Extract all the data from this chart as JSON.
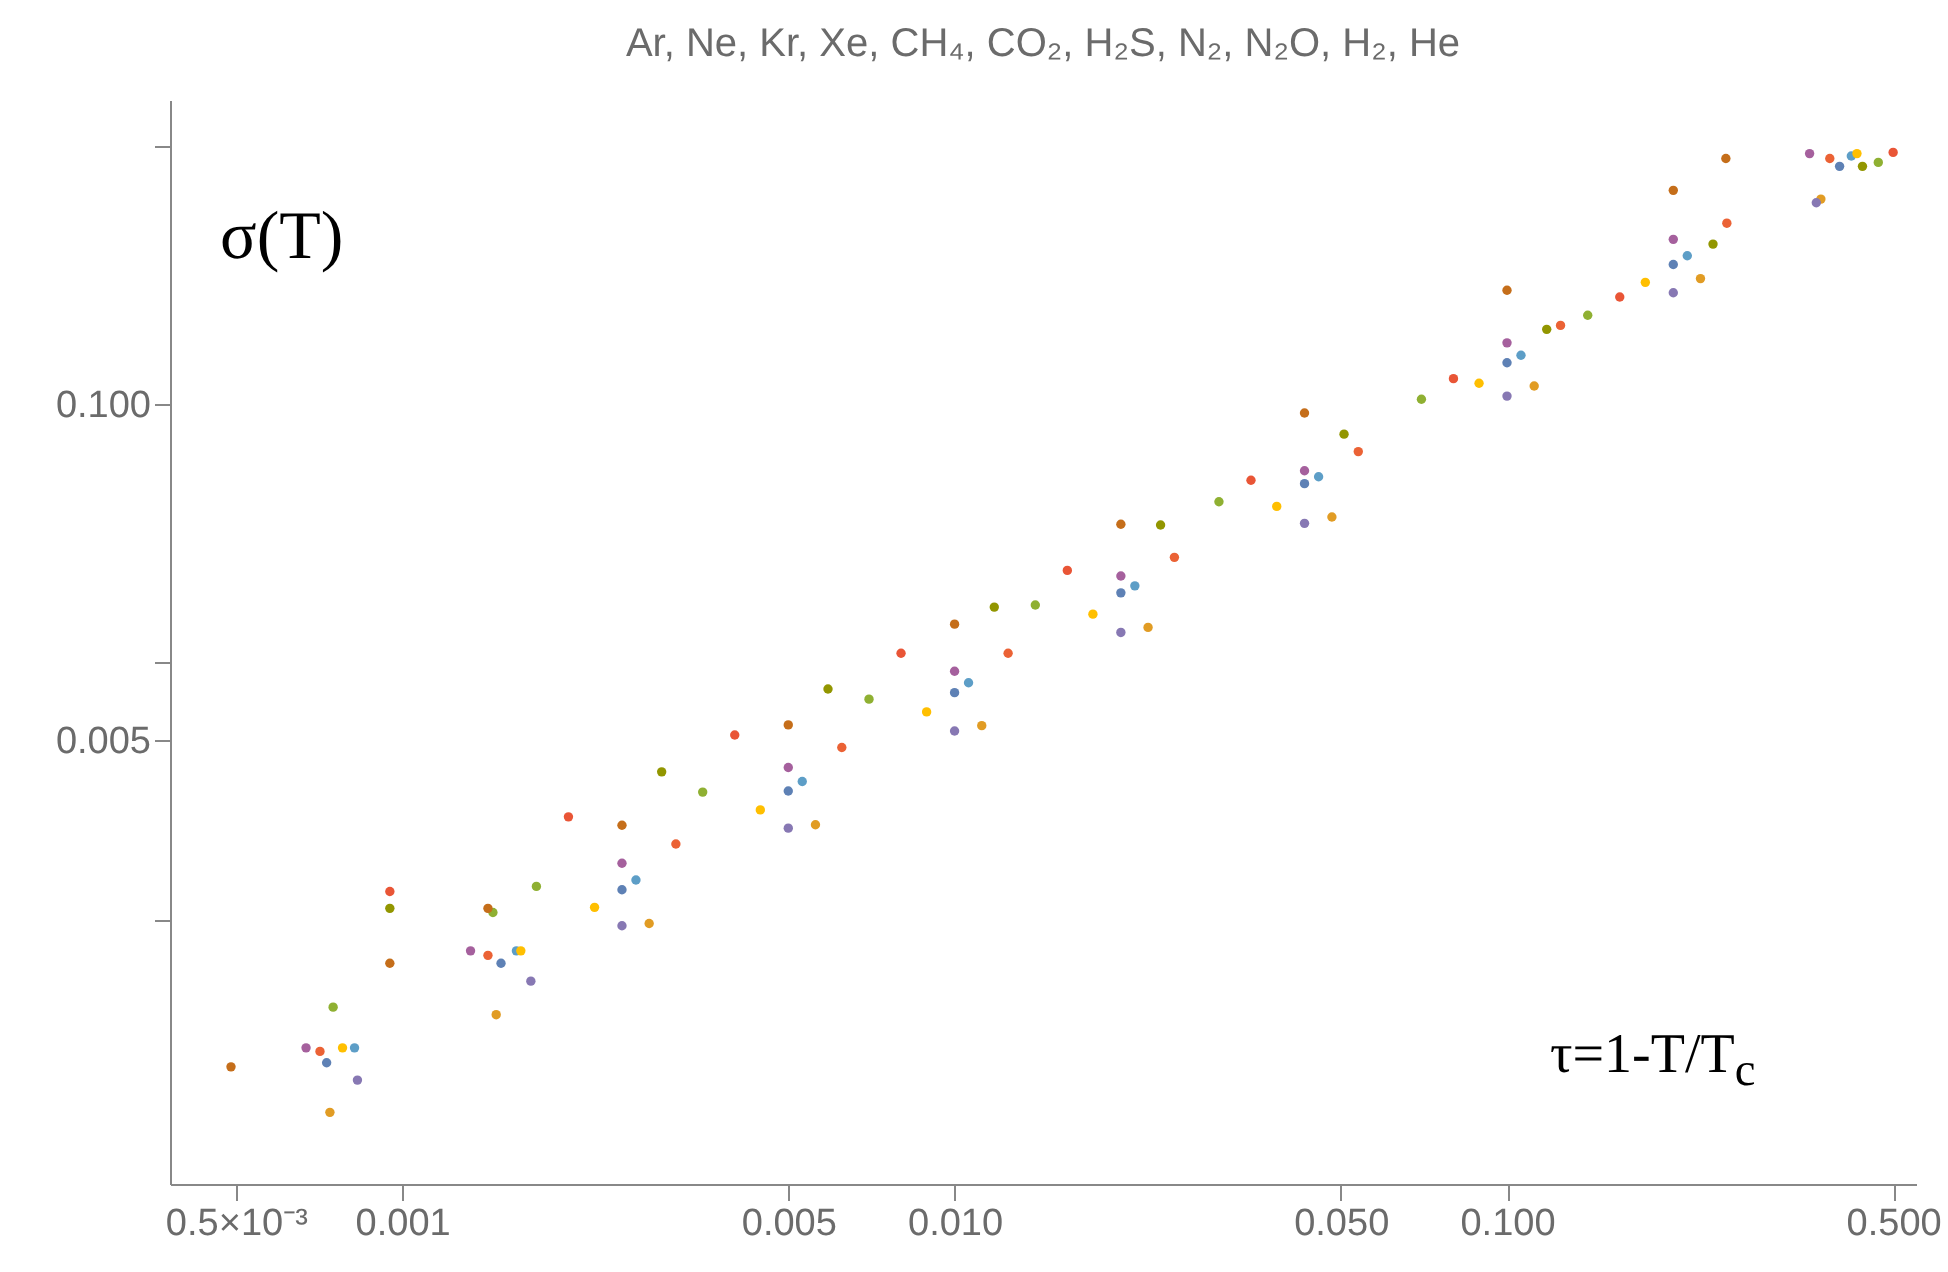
{
  "chart_data": {
    "type": "scatter",
    "title": "Ar, Ne, Kr, Xe, CH₄, CO₂, H₂S, N₂, N₂O, H₂, He",
    "xlabel": "τ=1-T/T$_{c}$",
    "ylabel": "σ(T)",
    "log": "xy",
    "marker": "circle",
    "xlim": [
      0.00038,
      0.55
    ],
    "ylim": [
      9.5e-05,
      1.5
    ],
    "xticks": [
      {
        "value": 0.0005,
        "label": "0.5×10⁻³"
      },
      {
        "value": 0.001,
        "label": "0.001"
      },
      {
        "value": 0.005,
        "label": "0.005"
      },
      {
        "value": 0.01,
        "label": "0.010"
      },
      {
        "value": 0.05,
        "label": "0.050"
      },
      {
        "value": 0.1,
        "label": "0.100"
      },
      {
        "value": 0.5,
        "label": "0.500"
      }
    ],
    "yticks": [
      {
        "value": 1,
        "label": null
      },
      {
        "value": 0.1,
        "label": "0.100"
      },
      {
        "value": 0.01,
        "label": null
      },
      {
        "value": 0.005,
        "label": "0.005"
      },
      {
        "value": 0.001,
        "label": null
      }
    ],
    "series": [
      {
        "color": "#5e81b5",
        "x": [
          0.00073,
          0.00151,
          0.0025,
          0.005,
          0.01,
          0.02,
          0.043,
          0.1,
          0.2,
          0.4
        ],
        "values": [
          0.00028,
          0.00068,
          0.00131,
          0.00316,
          0.0076,
          0.0185,
          0.049,
          0.144,
          0.346,
          0.83
        ]
      },
      {
        "color": "#e19c24",
        "x": [
          0.00074,
          0.00148,
          0.0028,
          0.0056,
          0.0112,
          0.0224,
          0.0482,
          0.112,
          0.224,
          0.37
        ],
        "values": [
          0.00018,
          0.00043,
          0.00097,
          0.00234,
          0.00566,
          0.0136,
          0.0364,
          0.117,
          0.305,
          0.62
        ]
      },
      {
        "color": "#8fb032",
        "x": [
          0.00075,
          0.00146,
          0.00175,
          0.0035,
          0.007,
          0.014,
          0.0301,
          0.07,
          0.14,
          0.47
        ],
        "values": [
          0.00046,
          0.00107,
          0.00135,
          0.00313,
          0.00717,
          0.0166,
          0.0417,
          0.104,
          0.22,
          0.86
        ]
      },
      {
        "color": "#eb6235",
        "x": [
          0.00071,
          0.00143,
          0.00313,
          0.00625,
          0.0125,
          0.025,
          0.0538,
          0.125,
          0.25,
          0.384
        ],
        "values": [
          0.00031,
          0.00073,
          0.00197,
          0.00466,
          0.0108,
          0.0254,
          0.0652,
          0.201,
          0.5,
          0.89
        ]
      },
      {
        "color": "#8778b3",
        "x": [
          0.00083,
          0.00171,
          0.0025,
          0.005,
          0.01,
          0.02,
          0.043,
          0.1,
          0.2,
          0.363
        ],
        "values": [
          0.00024,
          0.00058,
          0.00095,
          0.00227,
          0.0054,
          0.013,
          0.0344,
          0.107,
          0.269,
          0.6
        ]
      },
      {
        "color": "#c56e1a",
        "x": [
          0.00049,
          0.00095,
          0.00143,
          0.0025,
          0.005,
          0.01,
          0.02,
          0.043,
          0.1,
          0.2,
          0.249
        ],
        "values": [
          0.00027,
          0.00068,
          0.00111,
          0.00233,
          0.0057,
          0.014,
          0.0341,
          0.092,
          0.275,
          0.67,
          0.89
        ]
      },
      {
        "color": "#5d9ec7",
        "x": [
          0.00082,
          0.00161,
          0.00265,
          0.0053,
          0.0106,
          0.0212,
          0.0456,
          0.106,
          0.212,
          0.42
        ],
        "values": [
          0.00032,
          0.00076,
          0.00143,
          0.00344,
          0.0083,
          0.0197,
          0.0521,
          0.154,
          0.374,
          0.91
        ]
      },
      {
        "color": "#ffbf00",
        "x": [
          0.00078,
          0.00164,
          0.00223,
          0.00445,
          0.0089,
          0.0178,
          0.0383,
          0.089,
          0.178,
          0.43
        ],
        "values": [
          0.00032,
          0.00076,
          0.00112,
          0.00267,
          0.0064,
          0.0153,
          0.04,
          0.12,
          0.295,
          0.93
        ]
      },
      {
        "color": "#a5609d",
        "x": [
          0.00067,
          0.00133,
          0.0025,
          0.005,
          0.01,
          0.02,
          0.043,
          0.1,
          0.2,
          0.353
        ],
        "values": [
          0.00032,
          0.00076,
          0.00166,
          0.0039,
          0.0092,
          0.0215,
          0.055,
          0.172,
          0.433,
          0.93
        ]
      },
      {
        "color": "#929600",
        "x": [
          0.00095,
          0.00295,
          0.0059,
          0.0118,
          0.0236,
          0.0507,
          0.118,
          0.236,
          0.44
        ],
        "values": [
          0.00111,
          0.00375,
          0.00785,
          0.0163,
          0.0339,
          0.0762,
          0.194,
          0.415,
          0.83
        ]
      },
      {
        "color": "#e95536",
        "x": [
          0.00095,
          0.002,
          0.004,
          0.008,
          0.016,
          0.0344,
          0.08,
          0.16,
          0.5
        ],
        "values": [
          0.00129,
          0.00251,
          0.00521,
          0.0108,
          0.0226,
          0.0505,
          0.125,
          0.259,
          0.94
        ]
      }
    ]
  }
}
